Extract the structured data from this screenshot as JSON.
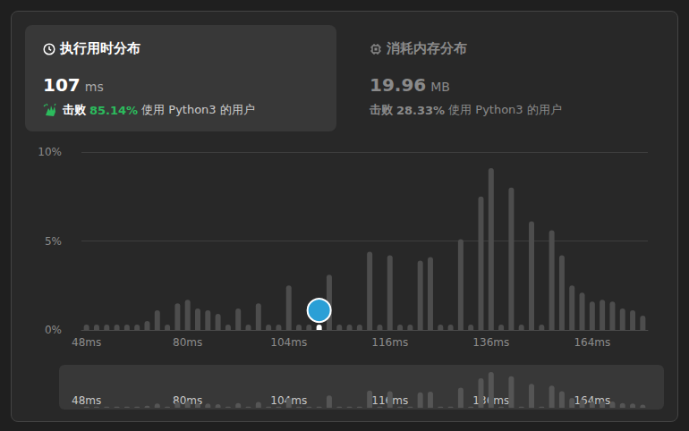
{
  "chart_data": {
    "type": "bar",
    "categories": [
      "48ms",
      null,
      null,
      null,
      null,
      null,
      null,
      null,
      null,
      null,
      "80ms",
      null,
      null,
      null,
      null,
      null,
      null,
      null,
      null,
      null,
      "104ms",
      null,
      null,
      null,
      null,
      null,
      null,
      null,
      null,
      null,
      "116ms",
      null,
      null,
      null,
      null,
      null,
      null,
      null,
      null,
      null,
      "136ms",
      null,
      null,
      null,
      null,
      null,
      null,
      null,
      null,
      null,
      "164ms",
      null,
      null,
      null,
      null,
      null
    ],
    "values": [
      0.3,
      0.3,
      0.3,
      0.3,
      0.3,
      0.3,
      0.5,
      1.1,
      0.3,
      1.5,
      1.7,
      1.2,
      1.1,
      0.9,
      0.3,
      1.2,
      0.3,
      1.5,
      0.3,
      0.3,
      2.5,
      0.3,
      0.3,
      0.3,
      3.1,
      0.3,
      0.3,
      0.3,
      4.4,
      0.3,
      4.2,
      0.3,
      0.3,
      3.9,
      4.1,
      0.3,
      0.3,
      5.1,
      0.3,
      7.5,
      9.1,
      0.3,
      8.0,
      0.3,
      6.1,
      0.3,
      5.6,
      4.2,
      2.5,
      2.1,
      1.6,
      1.7,
      1.6,
      1.2,
      1.1,
      0.8
    ],
    "colors": [
      "#4d4d4d",
      "#4d4d4d",
      "#4d4d4d",
      "#4d4d4d",
      "#4d4d4d",
      "#4d4d4d",
      "#4d4d4d",
      "#4d4d4d",
      "#4d4d4d",
      "#4d4d4d",
      "#4d4d4d",
      "#4d4d4d",
      "#4d4d4d",
      "#4d4d4d",
      "#4d4d4d",
      "#4d4d4d",
      "#4d4d4d",
      "#4d4d4d",
      "#4d4d4d",
      "#4d4d4d",
      "#4d4d4d",
      "#4d4d4d",
      "#4d4d4d",
      "#ffffff",
      "#4d4d4d",
      "#4d4d4d",
      "#4d4d4d",
      "#4d4d4d",
      "#4d4d4d",
      "#4d4d4d",
      "#4d4d4d",
      "#4d4d4d",
      "#4d4d4d",
      "#4d4d4d",
      "#4d4d4d",
      "#4d4d4d",
      "#4d4d4d",
      "#4d4d4d",
      "#4d4d4d",
      "#4d4d4d",
      "#4d4d4d",
      "#4d4d4d",
      "#4d4d4d",
      "#4d4d4d",
      "#4d4d4d",
      "#4d4d4d",
      "#4d4d4d",
      "#4d4d4d",
      "#4d4d4d",
      "#4d4d4d",
      "#4d4d4d",
      "#4d4d4d",
      "#4d4d4d",
      "#4d4d4d",
      "#4d4d4d",
      "#4d4d4d"
    ],
    "ylim": [
      0,
      10
    ],
    "yticks": [
      {
        "value": 0,
        "label": "0%"
      },
      {
        "value": 5,
        "label": "5%"
      },
      {
        "value": 10,
        "label": "10%"
      }
    ],
    "grid": true
  },
  "tabs": [
    {
      "title": "执行用时分布",
      "value": 107,
      "unit": "ms",
      "beats_label": "击败",
      "beats": "85.14%",
      "beats_text": "使用 Python3 的用户"
    },
    {
      "title": "消耗内存分布",
      "value": 19.96,
      "unit": "MB",
      "beats_label": "击败",
      "beats": "28.33%",
      "beats_text": "使用 Python3 的用户"
    }
  ]
}
